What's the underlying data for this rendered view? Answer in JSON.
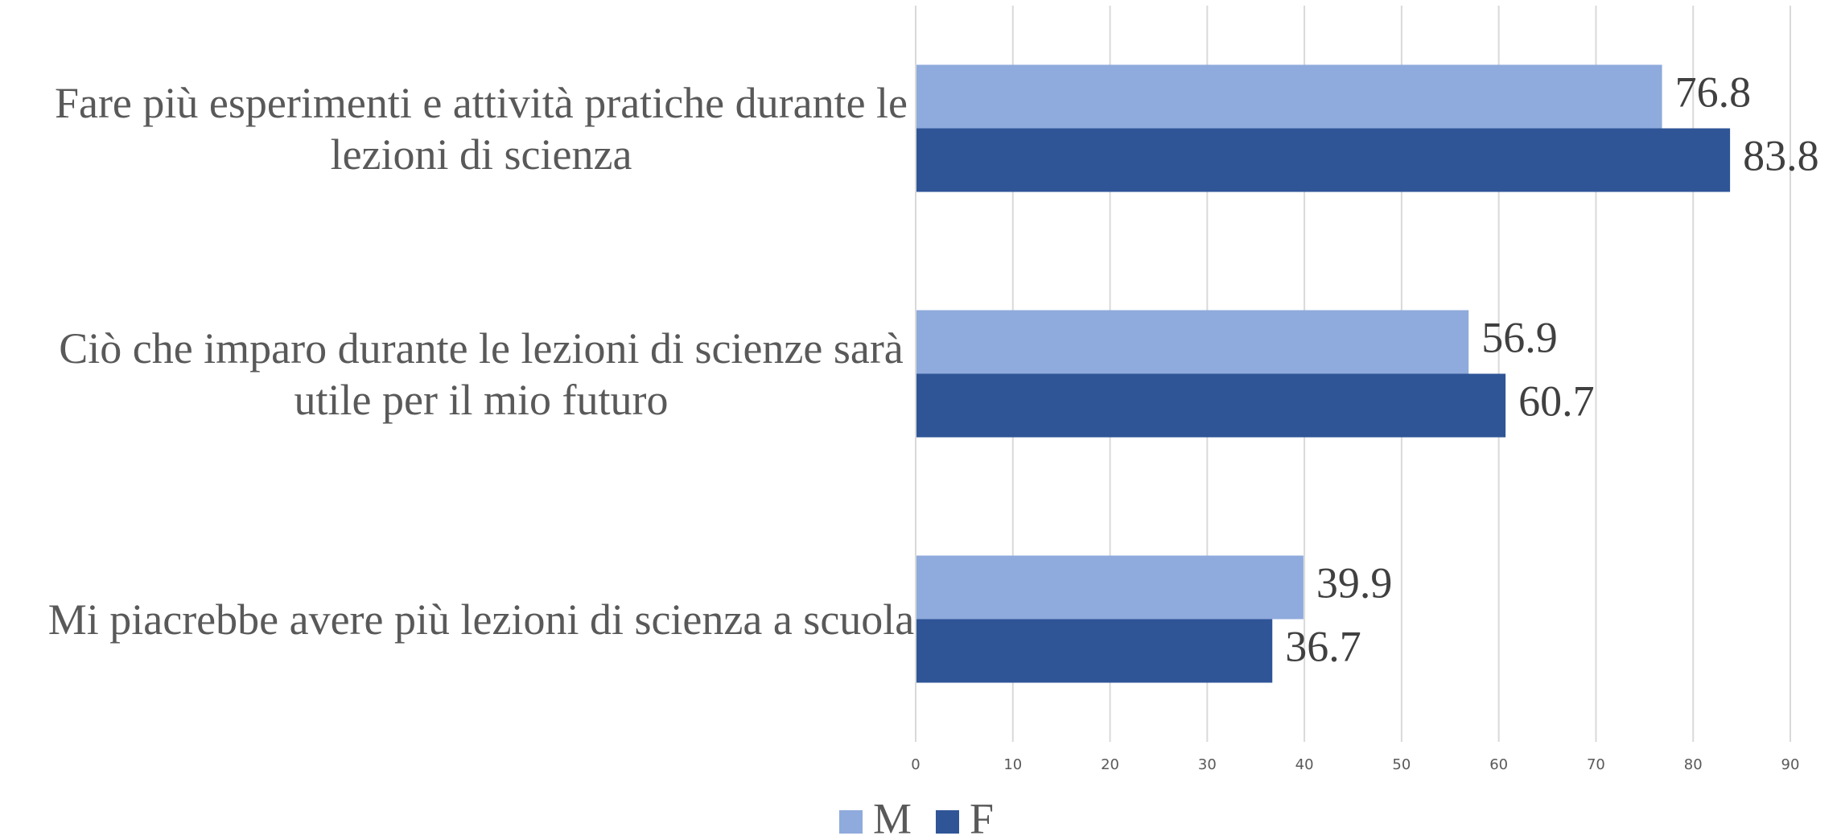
{
  "chart_data": {
    "type": "bar",
    "orientation": "horizontal",
    "categories": [
      "Fare più esperimenti e attività pratiche durante le lezioni di scienza",
      "Ciò che imparo durante le lezioni di scienze sarà utile per il mio futuro",
      "Mi piacrebbe avere più lezioni di scienza a scuola"
    ],
    "series": [
      {
        "name": "M",
        "color": "#8faadc",
        "values": [
          76.8,
          56.9,
          39.9
        ]
      },
      {
        "name": "F",
        "color": "#2f5597",
        "values": [
          83.8,
          60.7,
          36.7
        ]
      }
    ],
    "xlim": [
      0,
      90
    ],
    "xticks": [
      0,
      10,
      20,
      30,
      40,
      50,
      60,
      70,
      80,
      90
    ],
    "grid": true,
    "legend": "bottom"
  }
}
